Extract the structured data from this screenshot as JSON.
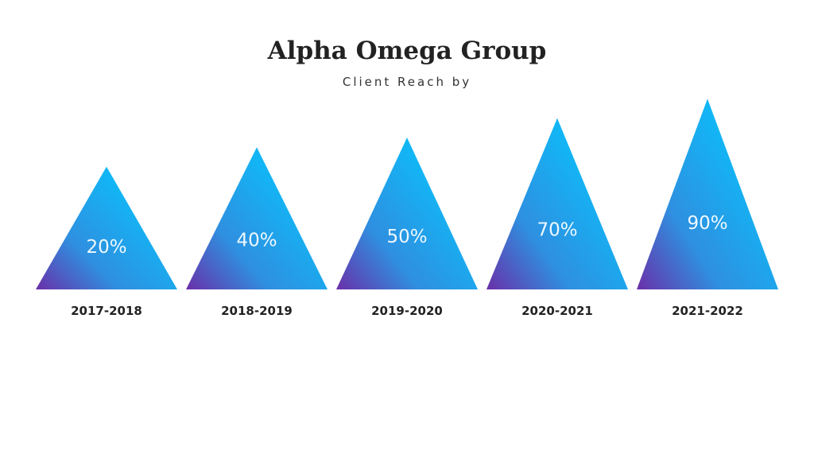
{
  "header": {
    "title": "Alpha Omega Group",
    "subtitle": "Client Reach by"
  },
  "colors": {
    "triangle_top": "#12b6f5",
    "triangle_mid": "#2f8fe0",
    "triangle_bottom_left": "#6a2fa8",
    "value_text": "#eef8ff",
    "category_text": "#222222"
  },
  "chart_data": {
    "type": "bar",
    "shape": "triangle",
    "title": "Alpha Omega Group",
    "subtitle": "Client Reach by",
    "categories": [
      "2017-2018",
      "2018-2019",
      "2019-2020",
      "2020-2021",
      "2021-2022"
    ],
    "values": [
      20,
      40,
      50,
      70,
      90
    ],
    "value_labels": [
      "20%",
      "40%",
      "50%",
      "70%",
      "90%"
    ],
    "unit": "%"
  }
}
